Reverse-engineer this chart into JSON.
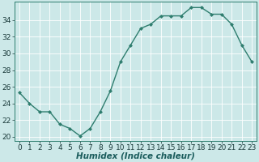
{
  "x": [
    0,
    1,
    2,
    3,
    4,
    5,
    6,
    7,
    8,
    9,
    10,
    11,
    12,
    13,
    14,
    15,
    16,
    17,
    18,
    19,
    20,
    21,
    22,
    23
  ],
  "y": [
    25.3,
    24.0,
    23.0,
    23.0,
    21.5,
    21.0,
    20.1,
    21.0,
    23.0,
    25.5,
    29.0,
    31.0,
    33.0,
    33.5,
    34.5,
    34.5,
    34.5,
    35.5,
    35.5,
    34.7,
    34.7,
    33.5,
    31.0,
    29.0
  ],
  "line_color": "#2e7d6e",
  "marker": "D",
  "marker_size": 2.0,
  "bg_color": "#cce8e8",
  "grid_color": "#ffffff",
  "xlabel": "Humidex (Indice chaleur)",
  "ylim": [
    19.5,
    36.2
  ],
  "xlim": [
    -0.5,
    23.5
  ],
  "yticks": [
    20,
    22,
    24,
    26,
    28,
    30,
    32,
    34
  ],
  "xticks": [
    0,
    1,
    2,
    3,
    4,
    5,
    6,
    7,
    8,
    9,
    10,
    11,
    12,
    13,
    14,
    15,
    16,
    17,
    18,
    19,
    20,
    21,
    22,
    23
  ],
  "xlabel_fontsize": 7.5,
  "tick_fontsize": 6.5,
  "line_width": 1.0
}
